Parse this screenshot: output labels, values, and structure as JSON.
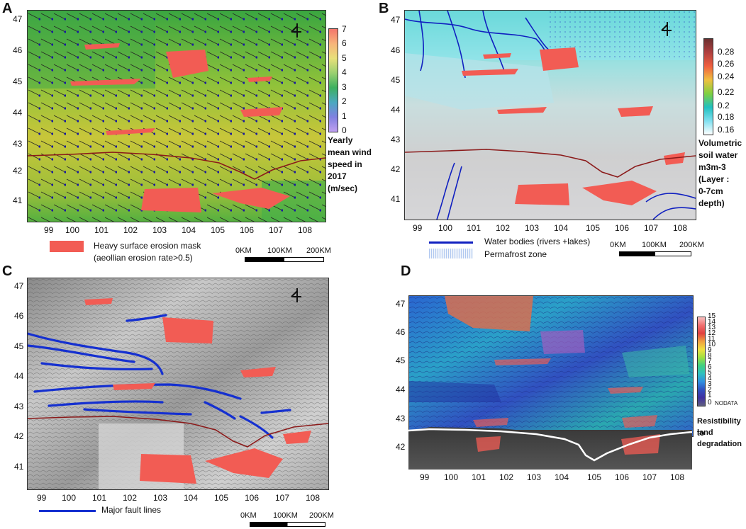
{
  "panels": {
    "A": {
      "letter": "A",
      "y_ticks": [
        "47",
        "46",
        "45",
        "44",
        "43",
        "42",
        "41"
      ],
      "x_ticks": [
        "99",
        "100",
        "101",
        "102",
        "103",
        "104",
        "105",
        "106",
        "107",
        "108"
      ],
      "colorbar_ticks": [
        "7",
        "6",
        "5",
        "4",
        "3",
        "2",
        "1",
        "0"
      ],
      "colorbar_title": [
        "Yearly",
        "mean wind",
        "speed in",
        "2017",
        "(m/sec)"
      ],
      "legend_label": [
        "Heavy surface erosion mask",
        "(aeollian erosion rate>0.5)"
      ],
      "scale": [
        "0KM",
        "100KM",
        "200KM"
      ],
      "north_icon": "north-arrow-icon"
    },
    "B": {
      "letter": "B",
      "y_ticks": [
        "47",
        "46",
        "45",
        "44",
        "43",
        "42",
        "41"
      ],
      "x_ticks": [
        "99",
        "100",
        "101",
        "102",
        "103",
        "104",
        "105",
        "106",
        "107",
        "108"
      ],
      "colorbar_ticks": [
        "0.28",
        "0.26",
        "0.24",
        "0.22",
        "0.2",
        "0.18",
        "0.16"
      ],
      "colorbar_title": [
        "Volumetric",
        "soil water",
        "m3m-3",
        "(Layer :",
        "0-7cm",
        "depth)"
      ],
      "legend_water": "Water bodies (rivers +lakes)",
      "legend_permafrost": "Permafrost zone",
      "scale": [
        "0KM",
        "100KM",
        "200KM"
      ]
    },
    "C": {
      "letter": "C",
      "y_ticks": [
        "47",
        "46",
        "45",
        "44",
        "43",
        "42",
        "41"
      ],
      "x_ticks": [
        "99",
        "100",
        "101",
        "102",
        "103",
        "104",
        "105",
        "106",
        "107",
        "108"
      ],
      "legend_fault": "Major fault lines",
      "scale": [
        "0KM",
        "100KM",
        "200KM"
      ]
    },
    "D": {
      "letter": "D",
      "y_ticks": [
        "47",
        "46",
        "45",
        "44",
        "43",
        "42"
      ],
      "x_ticks": [
        "99",
        "100",
        "101",
        "102",
        "103",
        "104",
        "105",
        "106",
        "107",
        "108"
      ],
      "colorbar_ticks": [
        "15",
        "14",
        "13",
        "12",
        "11",
        "10",
        "9",
        "8",
        "7",
        "6",
        "5",
        "4",
        "3",
        "2",
        "1",
        "0"
      ],
      "nodata_label": "NODATA",
      "colorbar_title": [
        "Resistibility to",
        "land",
        "degradation"
      ]
    }
  },
  "colors": {
    "erosion": "#f25c54",
    "border": "#8b1a1a",
    "water": "#1020c0",
    "fault": "#1530d0"
  }
}
